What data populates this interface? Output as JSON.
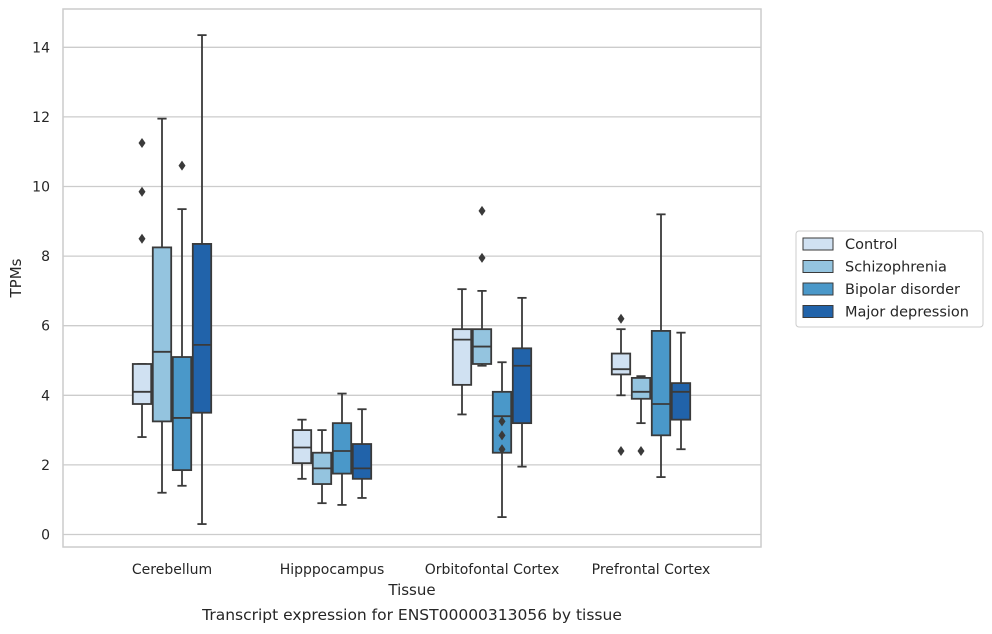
{
  "caption": "Transcript expression for ENST00000313056 by tissue",
  "chart_data": {
    "type": "boxplot",
    "title": "",
    "xlabel": "Tissue",
    "ylabel": "TPMs",
    "ylim": [
      -0.4,
      15.1
    ],
    "yticks": [
      0,
      2,
      4,
      6,
      8,
      10,
      12,
      14
    ],
    "grid": "horizontal",
    "legend_position": "right-outside",
    "categories": [
      "Cerebellum",
      "Hipppocampus",
      "Orbitofontal Cortex",
      "Prefrontal Cortex"
    ],
    "series": [
      {
        "name": "Control",
        "color": "#d0e1f2",
        "boxes": [
          {
            "whislo": 2.8,
            "q1": 3.75,
            "med": 4.1,
            "q3": 4.9,
            "whishi": 4.9,
            "fliers": [
              8.5,
              9.85,
              11.25
            ]
          },
          {
            "whislo": 1.6,
            "q1": 2.05,
            "med": 2.5,
            "q3": 3.0,
            "whishi": 3.3,
            "fliers": []
          },
          {
            "whislo": 3.45,
            "q1": 4.3,
            "med": 5.6,
            "q3": 5.9,
            "whishi": 7.05,
            "fliers": []
          },
          {
            "whislo": 4.0,
            "q1": 4.6,
            "med": 4.75,
            "q3": 5.2,
            "whishi": 5.9,
            "fliers": [
              2.4,
              6.2
            ]
          }
        ]
      },
      {
        "name": "Schizophrenia",
        "color": "#94c4df",
        "boxes": [
          {
            "whislo": 1.2,
            "q1": 3.25,
            "med": 5.25,
            "q3": 8.25,
            "whishi": 11.95,
            "fliers": []
          },
          {
            "whislo": 0.9,
            "q1": 1.45,
            "med": 1.9,
            "q3": 2.35,
            "whishi": 3.0,
            "fliers": []
          },
          {
            "whislo": 4.85,
            "q1": 4.9,
            "med": 5.4,
            "q3": 5.9,
            "whishi": 7.0,
            "fliers": [
              7.95,
              9.3
            ]
          },
          {
            "whislo": 3.2,
            "q1": 3.9,
            "med": 4.1,
            "q3": 4.5,
            "whishi": 4.55,
            "fliers": [
              2.4
            ]
          }
        ]
      },
      {
        "name": "Bipolar disorder",
        "color": "#4a98c9",
        "boxes": [
          {
            "whislo": 1.4,
            "q1": 1.85,
            "med": 3.35,
            "q3": 5.1,
            "whishi": 9.35,
            "fliers": [
              10.6
            ]
          },
          {
            "whislo": 0.85,
            "q1": 1.75,
            "med": 2.4,
            "q3": 3.2,
            "whishi": 4.05,
            "fliers": []
          },
          {
            "whislo": 0.5,
            "q1": 2.35,
            "med": 3.4,
            "q3": 4.1,
            "whishi": 4.95,
            "fliers": [
              2.45,
              2.85,
              3.25
            ]
          },
          {
            "whislo": 1.65,
            "q1": 2.85,
            "med": 3.75,
            "q3": 5.85,
            "whishi": 9.2,
            "fliers": []
          }
        ]
      },
      {
        "name": "Major depression",
        "color": "#2163aa",
        "boxes": [
          {
            "whislo": 0.3,
            "q1": 3.5,
            "med": 5.45,
            "q3": 8.35,
            "whishi": 14.35,
            "fliers": []
          },
          {
            "whislo": 1.05,
            "q1": 1.6,
            "med": 1.9,
            "q3": 2.6,
            "whishi": 3.6,
            "fliers": []
          },
          {
            "whislo": 1.95,
            "q1": 3.2,
            "med": 4.85,
            "q3": 5.35,
            "whishi": 6.8,
            "fliers": []
          },
          {
            "whislo": 2.45,
            "q1": 3.3,
            "med": 4.1,
            "q3": 4.35,
            "whishi": 5.8,
            "fliers": []
          }
        ]
      }
    ]
  }
}
